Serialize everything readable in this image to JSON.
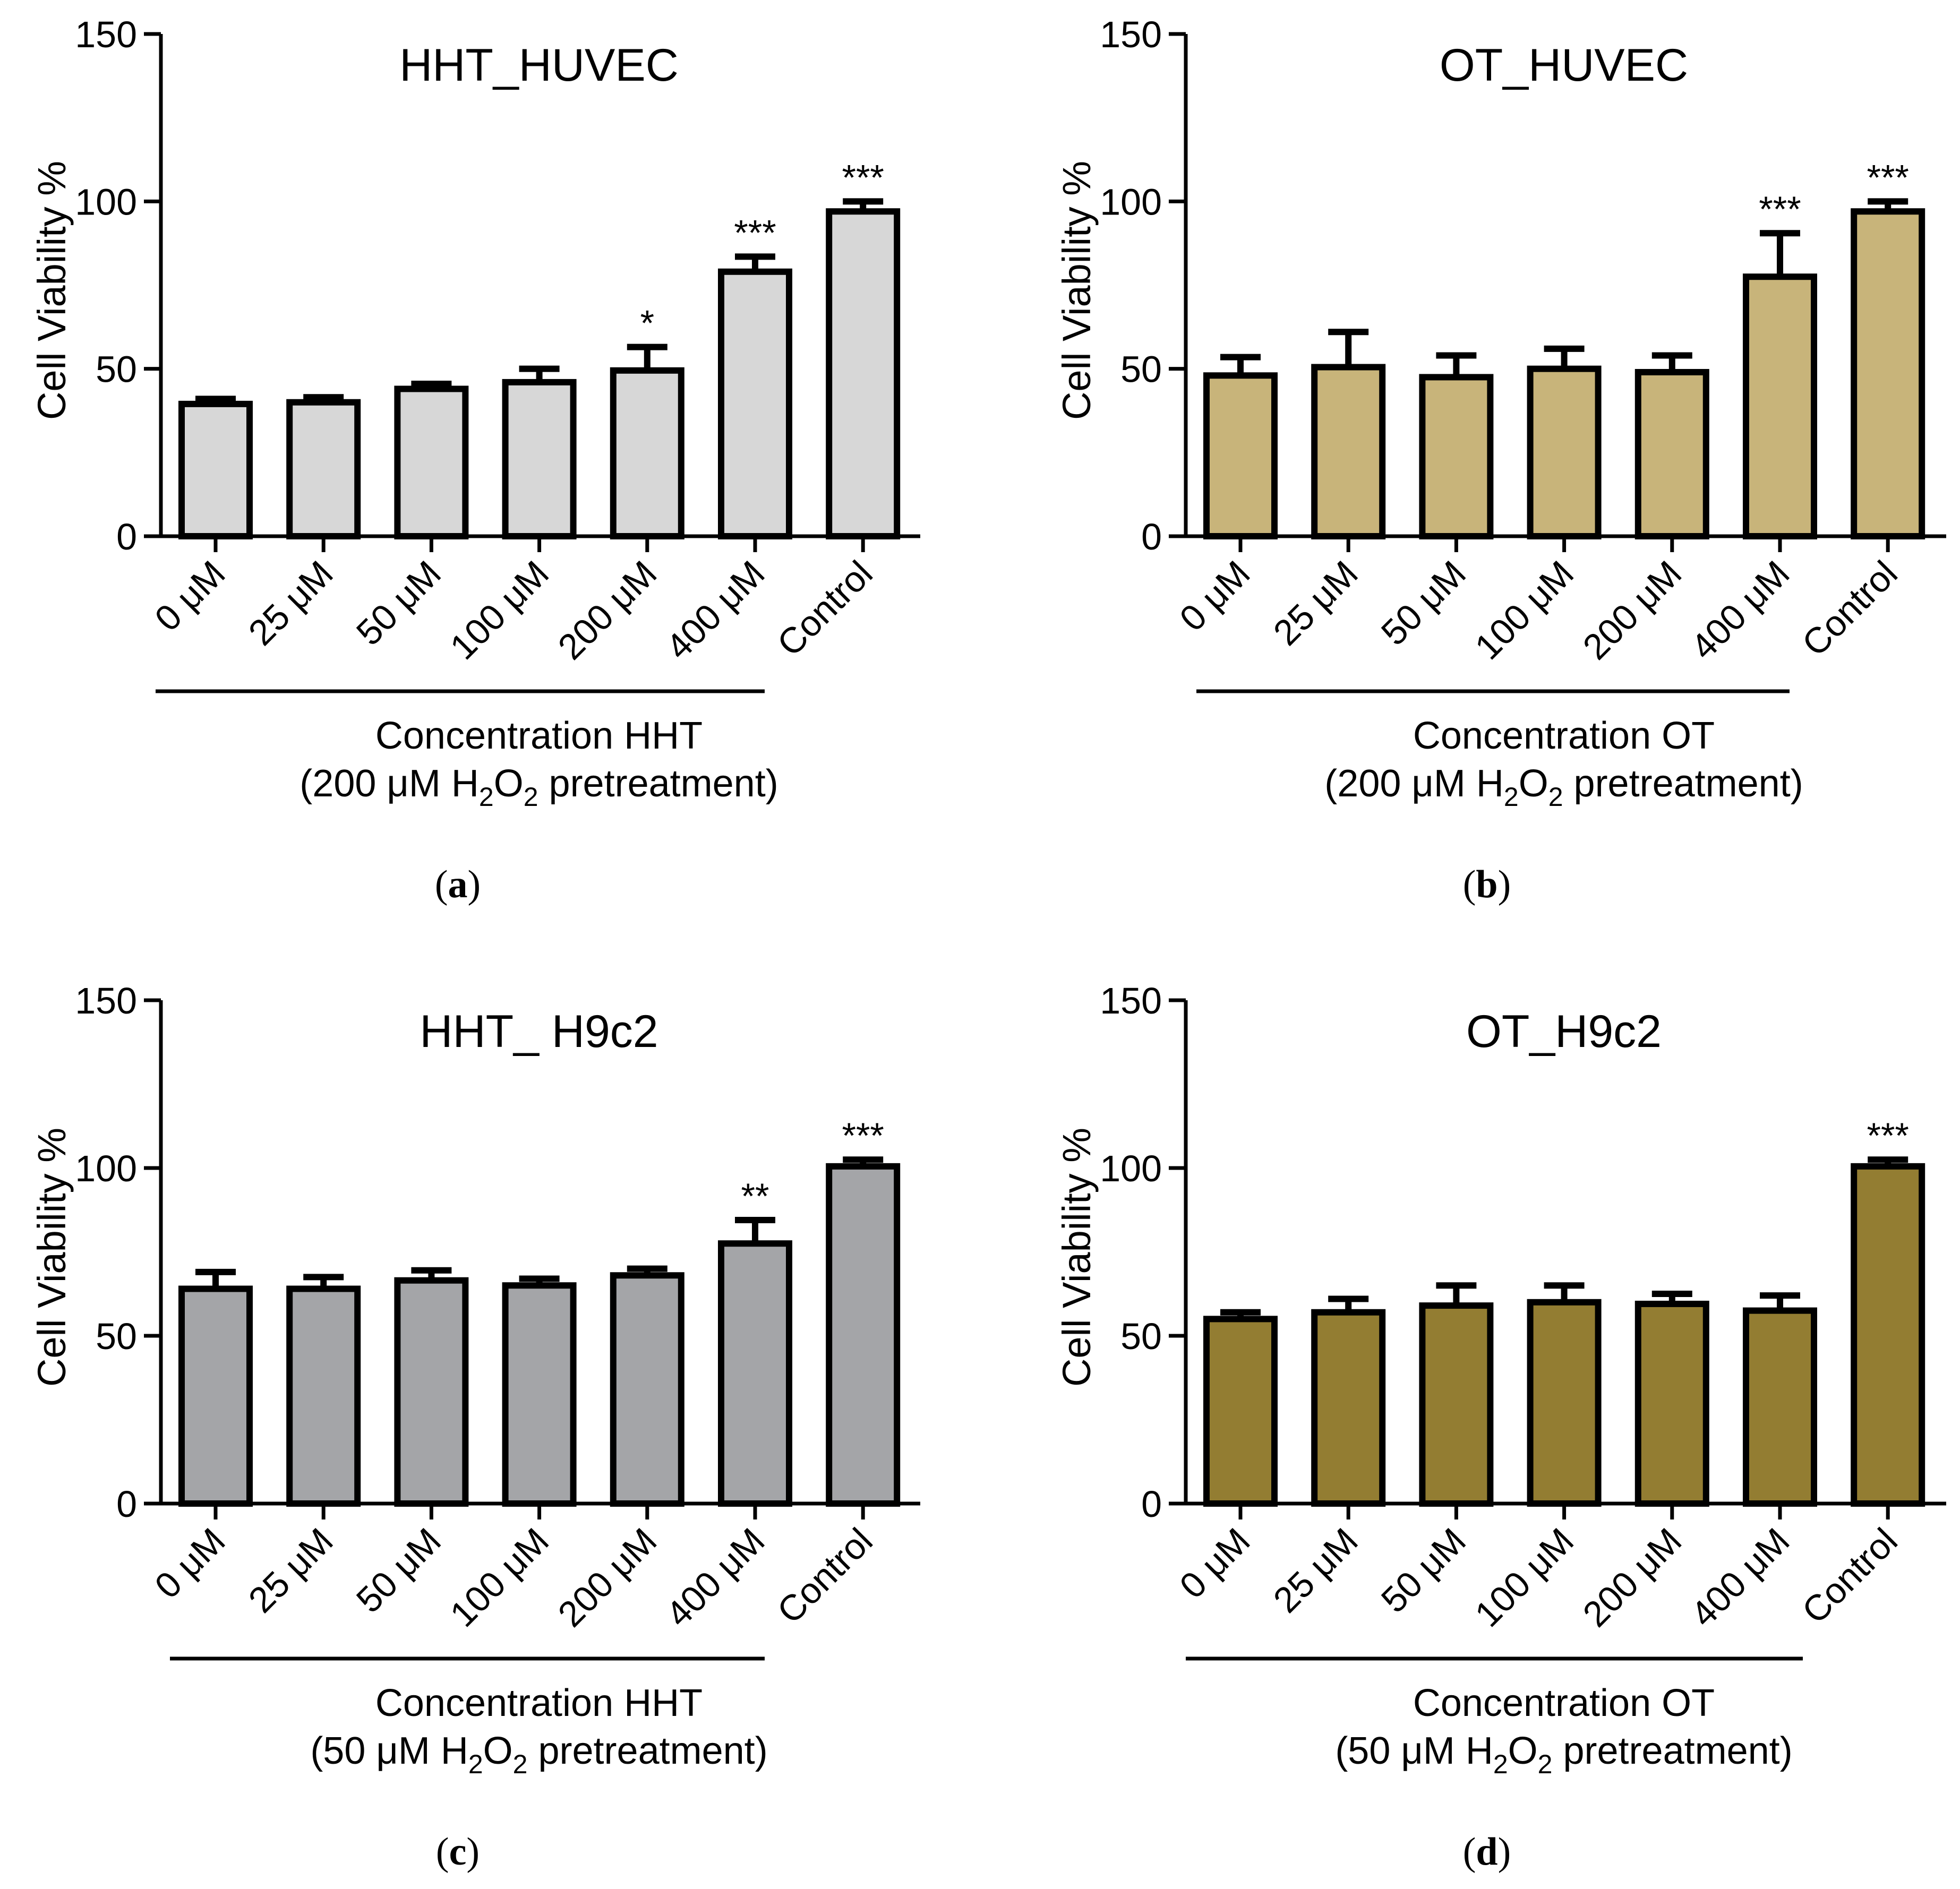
{
  "chart_data": [
    {
      "panel_label": "a",
      "type": "bar",
      "title": "HHT_HUVEC",
      "ylabel": "Cell Viability %",
      "ylim": [
        0,
        150
      ],
      "yticks": [
        "0",
        "50",
        "100",
        "150"
      ],
      "categories": [
        "0 μM",
        "25 μM",
        "50 μM",
        "100 μM",
        "200 μM",
        "400 μM",
        "Control"
      ],
      "values": [
        39.5,
        40,
        44,
        46,
        49.5,
        79,
        97
      ],
      "errors": [
        1.5,
        1.5,
        1.5,
        4,
        7,
        4.5,
        3
      ],
      "significance": [
        "",
        "",
        "",
        "",
        "*",
        "***",
        "***"
      ],
      "xlabel_line1": "Concentration HHT",
      "xlabel_line2": {
        "pre": "(200 μM H",
        "sub1": "2",
        "mid": "O",
        "sub2": "2",
        "post": " pretreatment)"
      },
      "bar_color": "#d7d7d7"
    },
    {
      "panel_label": "b",
      "type": "bar",
      "title": "OT_HUVEC",
      "ylabel": "Cell Viability %",
      "ylim": [
        0,
        150
      ],
      "yticks": [
        "0",
        "50",
        "100",
        "150"
      ],
      "categories": [
        "0 μM",
        "25 μM",
        "50 μM",
        "100 μM",
        "200 μM",
        "400 μM",
        "Control"
      ],
      "values": [
        48,
        50.5,
        47.5,
        50,
        49,
        77.5,
        97
      ],
      "errors": [
        5.5,
        10.5,
        6.5,
        6,
        5,
        13,
        3
      ],
      "significance": [
        "",
        "",
        "",
        "",
        "",
        "***",
        "***"
      ],
      "xlabel_line1": "Concentration OT",
      "xlabel_line2": {
        "pre": "(200 μM H",
        "sub1": "2",
        "mid": "O",
        "sub2": "2",
        "post": " pretreatment)"
      },
      "bar_color": "#c8b47a"
    },
    {
      "panel_label": "c",
      "type": "bar",
      "title": "HHT_ H9c2",
      "ylabel": "Cell Viability %",
      "ylim": [
        0,
        150
      ],
      "yticks": [
        "0",
        "50",
        "100",
        "150"
      ],
      "categories": [
        "0 μM",
        "25 μM",
        "50 μM",
        "100 μM",
        "200 μM",
        "400 μM",
        "Control"
      ],
      "values": [
        64,
        64,
        66.5,
        65,
        68,
        77.5,
        100.5
      ],
      "errors": [
        5,
        3.5,
        3,
        2,
        2,
        7,
        2
      ],
      "significance": [
        "",
        "",
        "",
        "",
        "",
        "**",
        "***"
      ],
      "xlabel_line1": "Concentration HHT",
      "xlabel_line2": {
        "pre": "(50 μM H",
        "sub1": "2",
        "mid": "O",
        "sub2": "2",
        "post": " pretreatment)"
      },
      "bar_color": "#a4a5a8"
    },
    {
      "panel_label": "d",
      "type": "bar",
      "title": "OT_H9c2",
      "ylabel": "Cell Viability %",
      "ylim": [
        0,
        150
      ],
      "yticks": [
        "0",
        "50",
        "100",
        "150"
      ],
      "categories": [
        "0 μM",
        "25 μM",
        "50 μM",
        "100 μM",
        "200 μM",
        "400 μM",
        "Control"
      ],
      "values": [
        55,
        57,
        59,
        60,
        59.5,
        57.5,
        100.5
      ],
      "errors": [
        2,
        4,
        6,
        5,
        3,
        4.5,
        2
      ],
      "significance": [
        "",
        "",
        "",
        "",
        "",
        "",
        "***"
      ],
      "xlabel_line1": "Concentration OT",
      "xlabel_line2": {
        "pre": "(50 μM H",
        "sub1": "2",
        "mid": "O",
        "sub2": "2",
        "post": " pretreatment)"
      },
      "bar_color": "#937d32"
    }
  ]
}
